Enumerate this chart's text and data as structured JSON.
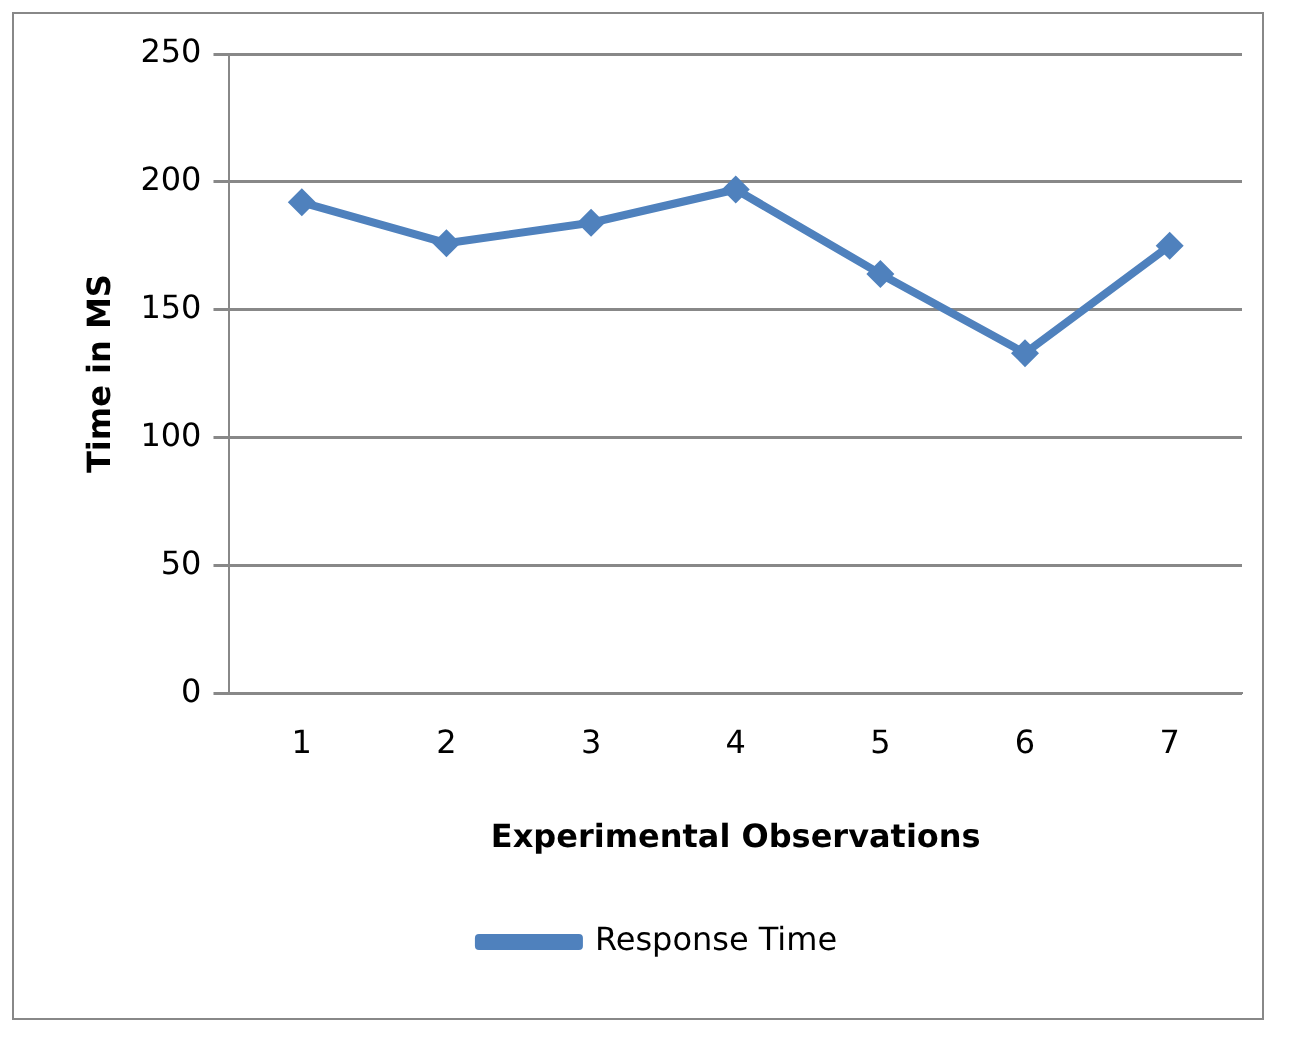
{
  "chart_data": {
    "type": "line",
    "xlabel": "Experimental Observations",
    "ylabel": "Time in MS",
    "categories": [
      "1",
      "2",
      "3",
      "4",
      "5",
      "6",
      "7"
    ],
    "series": [
      {
        "name": "Response Time",
        "color": "#4f81bd",
        "values": [
          192,
          176,
          184,
          197,
          164,
          133,
          175
        ]
      }
    ],
    "ylim": [
      0,
      250
    ],
    "yticks": [
      0,
      50,
      100,
      150,
      200,
      250
    ],
    "grid": "y",
    "legend": "bottom",
    "marker": "diamond",
    "line_style": "solid"
  }
}
